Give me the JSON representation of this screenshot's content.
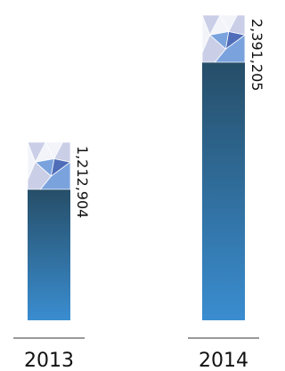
{
  "chart_data": {
    "type": "bar",
    "categories": [
      "2013",
      "2014"
    ],
    "values": [
      1212904,
      2391205
    ],
    "value_labels": [
      "1,212,904",
      "2,391,205"
    ],
    "title": "",
    "xlabel": "",
    "ylabel": "",
    "ylim": [
      0,
      2391205
    ],
    "grid": false,
    "legend": "none"
  },
  "colors": {
    "bar_top": "#264e68",
    "bar_bottom": "#3a8dd0",
    "cap_light": "#f2f4fa",
    "cap_mid": "#c6cbe6",
    "cap_blue": "#6e9bdc",
    "cap_dark": "#3f5fb3",
    "baseline": "#333333"
  },
  "icons": {
    "bar_cap": "crystal-gem-icon"
  }
}
